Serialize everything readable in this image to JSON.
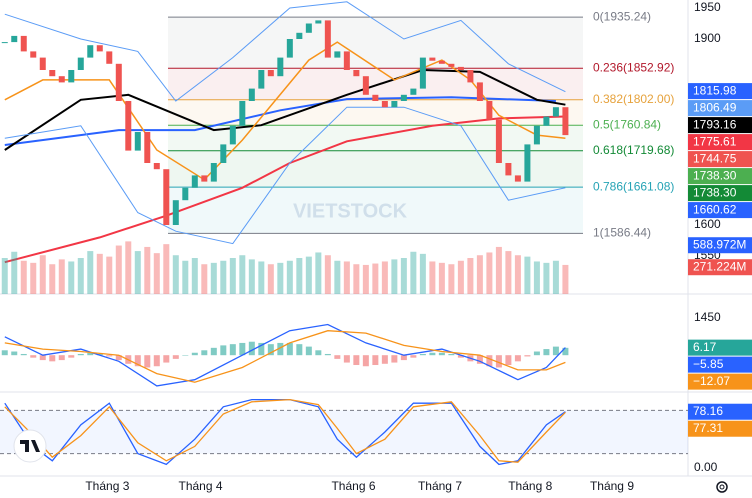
{
  "chart_data": {
    "type": "candlestick",
    "watermark": "VIETSTOCK",
    "xlim": [
      -0.5,
      71.9
    ],
    "xticks": [
      {
        "value": 10.8,
        "label": "Tháng 3"
      },
      {
        "value": 20.6,
        "label": "Tháng 4"
      },
      {
        "value": 36.7,
        "label": "Tháng 6"
      },
      {
        "value": 45.8,
        "label": "Tháng 7"
      },
      {
        "value": 55.3,
        "label": "Tháng 8"
      },
      {
        "value": 63.9,
        "label": "Tháng 9"
      }
    ],
    "ylim": [
      1450,
      1950
    ],
    "yticks": [
      1450,
      1550,
      1600,
      1900,
      1950
    ],
    "up_color": "#26a69a",
    "down_color": "#ef5350",
    "close": [
      1895,
      1905,
      1880,
      1870,
      1850,
      1840,
      1830,
      1850,
      1870,
      1890,
      1880,
      1860,
      1800,
      1720,
      1750,
      1700,
      1690,
      1600,
      1640,
      1660,
      1680,
      1670,
      1700,
      1730,
      1760,
      1800,
      1820,
      1850,
      1840,
      1870,
      1900,
      1910,
      1925,
      1930,
      1870,
      1880,
      1850,
      1840,
      1810,
      1800,
      1790,
      1800,
      1810,
      1820,
      1870,
      1865,
      1860,
      1855,
      1850,
      1830,
      1800,
      1770,
      1700,
      1680,
      1670,
      1730,
      1760,
      1775,
      1790,
      1745
    ],
    "lines": [
      {
        "color": "#f23645",
        "width": 2,
        "x": [
          0,
          10,
          17,
          25,
          30,
          36,
          45,
          52,
          59
        ],
        "values": [
          1540,
          1580,
          1615,
          1660,
          1700,
          1735,
          1760,
          1772,
          1775
        ]
      },
      {
        "color": "#2962ff",
        "width": 2,
        "x": [
          0,
          12,
          20,
          29,
          36,
          47,
          58
        ],
        "values": [
          1729,
          1753,
          1753,
          1785,
          1803,
          1806,
          1800
        ]
      },
      {
        "color": "#000000",
        "width": 2,
        "x": [
          0,
          8,
          13,
          22,
          27,
          36,
          44,
          50,
          56,
          59
        ],
        "values": [
          1721,
          1802,
          1810,
          1753,
          1761,
          1810,
          1850,
          1847,
          1802,
          1794
        ]
      },
      {
        "color": "#f7931a",
        "width": 1.5,
        "x": [
          0,
          4,
          11,
          16,
          21,
          25,
          32,
          35,
          41,
          46,
          49,
          52,
          56,
          59
        ],
        "values": [
          1802,
          1834,
          1834,
          1721,
          1673,
          1737,
          1866,
          1895,
          1834,
          1866,
          1834,
          1777,
          1745,
          1740
        ]
      },
      {
        "color": "#5b9cf6",
        "width": 1,
        "x": [
          0,
          8,
          14,
          18,
          24,
          30,
          36,
          42,
          48,
          53,
          59
        ],
        "values": [
          1940,
          1900,
          1880,
          1800,
          1870,
          1950,
          1960,
          1900,
          1930,
          1860,
          1815
        ]
      },
      {
        "color": "#5b9cf6",
        "width": 1,
        "x": [
          0,
          8,
          14,
          18,
          24,
          30,
          36,
          42,
          48,
          53,
          59
        ],
        "values": [
          1740,
          1760,
          1620,
          1590,
          1570,
          1700,
          1790,
          1790,
          1760,
          1640,
          1660
        ]
      }
    ],
    "fib_levels": [
      {
        "value": 1935.24,
        "label": "0(1935.24)",
        "color": "#787b86"
      },
      {
        "value": 1852.92,
        "label": "0.236(1852.92)",
        "color": "#b2182b"
      },
      {
        "value": 1802.0,
        "label": "0.382(1802.00)",
        "color": "#e6a23c"
      },
      {
        "value": 1760.84,
        "label": "0.5(1760.84)",
        "color": "#4caf50"
      },
      {
        "value": 1719.68,
        "label": "0.618(1719.68)",
        "color": "#138a36"
      },
      {
        "value": 1661.08,
        "label": "0.786(1661.08)",
        "color": "#26a3b5"
      },
      {
        "value": 1586.44,
        "label": "1(1586.44)",
        "color": "#787b86"
      }
    ],
    "price_tags": [
      {
        "value": 1815.98,
        "label": "1815.98",
        "color": "#2962ff"
      },
      {
        "value": 1806.49,
        "label": "1806.49",
        "color": "#5b9cf6"
      },
      {
        "value": 1793.16,
        "label": "1793.16",
        "color": "#000000"
      },
      {
        "value": 1775.61,
        "label": "1775.61",
        "color": "#f23645"
      },
      {
        "value": 1744.75,
        "label": "1744.75",
        "color": "#ef5350"
      },
      {
        "value": 1738.3,
        "label": "1738.30",
        "color": "#4caf50"
      },
      {
        "value": 1738.3,
        "label": "1738.30",
        "color": "#138a36"
      },
      {
        "value": 1660.62,
        "label": "1660.62",
        "color": "#2962ff"
      }
    ],
    "volume": {
      "ylim": [
        0,
        780
      ],
      "values": [
        520,
        610,
        480,
        450,
        560,
        430,
        500,
        470,
        520,
        620,
        580,
        540,
        700,
        760,
        620,
        680,
        590,
        720,
        560,
        480,
        520,
        430,
        450,
        480,
        520,
        560,
        500,
        470,
        430,
        450,
        480,
        520,
        540,
        600,
        560,
        480,
        470,
        430,
        420,
        440,
        470,
        500,
        520,
        610,
        580,
        470,
        450,
        430,
        480,
        520,
        560,
        600,
        680,
        620,
        560,
        540,
        470,
        450,
        480,
        420
      ],
      "tags": [
        {
          "value": 588.972,
          "label": "588.972M",
          "color": "#2962ff"
        },
        {
          "value": 271.224,
          "label": "271.224M",
          "color": "#ef5350"
        }
      ]
    },
    "macd": {
      "ylim": [
        -30,
        45
      ],
      "histogram": [
        4,
        3,
        1,
        -2,
        -4,
        -5,
        -4,
        -2,
        1,
        2,
        1,
        -1,
        -4,
        -7,
        -9,
        -10,
        -9,
        -6,
        -3,
        0,
        2,
        4,
        6,
        8,
        9,
        10,
        11,
        10,
        9,
        10,
        10,
        9,
        7,
        4,
        1,
        -3,
        -6,
        -8,
        -9,
        -8,
        -7,
        -6,
        -4,
        -2,
        1,
        2,
        2,
        1,
        -2,
        -5,
        -7,
        -9,
        -10,
        -8,
        -5,
        -1,
        3,
        5,
        7,
        6
      ],
      "lines": [
        {
          "color": "#2962ff",
          "x": [
            0,
            4,
            8,
            12,
            16,
            20,
            25,
            30,
            34,
            38,
            42,
            46,
            50,
            54,
            57,
            59
          ],
          "values": [
            15,
            0,
            5,
            -5,
            -25,
            -20,
            0,
            20,
            25,
            10,
            0,
            5,
            -5,
            -20,
            -10,
            6.17
          ]
        },
        {
          "color": "#f7931a",
          "x": [
            0,
            4,
            8,
            12,
            16,
            20,
            25,
            30,
            34,
            38,
            42,
            46,
            50,
            54,
            57,
            59
          ],
          "values": [
            10,
            5,
            3,
            0,
            -15,
            -22,
            -10,
            10,
            20,
            18,
            8,
            3,
            0,
            -12,
            -12,
            -5.85
          ]
        }
      ],
      "tags": [
        {
          "value": 6.17,
          "label": "6.17",
          "color": "#26a69a"
        },
        {
          "value": -5.85,
          "label": "−5.85",
          "color": "#2962ff"
        },
        {
          "value": -12.07,
          "label": "−12.07",
          "color": "#f7931a"
        }
      ]
    },
    "stoch": {
      "ylim": [
        0,
        100
      ],
      "bands": [
        80,
        20
      ],
      "lines": [
        {
          "color": "#2962ff",
          "x": [
            0,
            3,
            5,
            8,
            11,
            14,
            17,
            20,
            23,
            26,
            30,
            33,
            35,
            37,
            40,
            43,
            47,
            50,
            52,
            54,
            57,
            59
          ],
          "values": [
            90,
            30,
            10,
            60,
            90,
            20,
            5,
            40,
            85,
            95,
            95,
            85,
            40,
            15,
            50,
            90,
            90,
            30,
            5,
            10,
            60,
            78.16
          ]
        },
        {
          "color": "#f7931a",
          "x": [
            0,
            3,
            5,
            8,
            11,
            14,
            17,
            20,
            23,
            26,
            30,
            33,
            35,
            37,
            40,
            43,
            47,
            50,
            52,
            54,
            57,
            59
          ],
          "values": [
            85,
            45,
            15,
            45,
            85,
            35,
            10,
            30,
            75,
            92,
            95,
            88,
            55,
            20,
            40,
            85,
            92,
            45,
            10,
            8,
            50,
            77.31
          ]
        }
      ],
      "tags": [
        {
          "value": 78.16,
          "label": "78.16",
          "color": "#2962ff"
        },
        {
          "value": 77.31,
          "label": "77.31",
          "color": "#f7931a"
        }
      ],
      "yticks": [
        {
          "value": 0,
          "label": "0.00"
        }
      ]
    }
  }
}
